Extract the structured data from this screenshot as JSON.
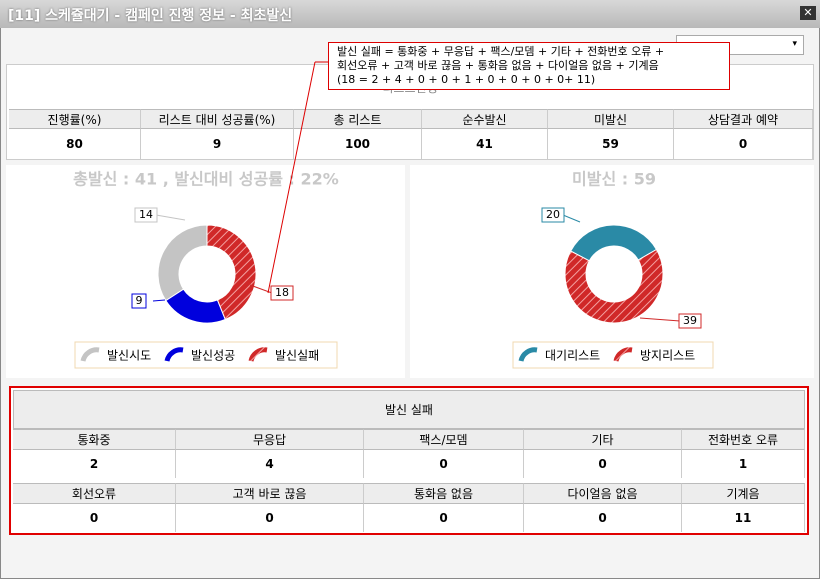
{
  "window": {
    "title": "[11] 스케쥴대기 - 캠페인 진행 정보 - 최초발신"
  },
  "tooltip": {
    "lines": [
      "발신 실패 = 통화중 + 무응답 + 팩스/모뎀 + 기타 + 전화번호 오류 +",
      "회선오류 + 고객 바로 끊음 + 통화음 없음 + 다이얼음 없음 + 기계음",
      "(18 = 2 + 4 + 0 + 0 + 1 + 0 + 0 + 0 + 0+ 11)"
    ]
  },
  "summary": {
    "title": "리스트진행",
    "headers": [
      "진행률(%)",
      "리스트 대비 성공률(%)",
      "총 리스트",
      "순수발신",
      "미발신",
      "상담결과 예약"
    ],
    "values": [
      80,
      9,
      100,
      41,
      59,
      0
    ]
  },
  "charts": [
    {
      "type": "donut",
      "title": "총발신 : 41 , 발신대비 성공률 : 22%",
      "series": [
        {
          "name": "발신시도",
          "color": "#c4c4c4",
          "value": 14
        },
        {
          "name": "발신성공",
          "color": "#0000dd",
          "value": 9
        },
        {
          "name": "발신실패",
          "color": "#d02828",
          "value": 18,
          "hatched": true
        }
      ]
    },
    {
      "type": "donut",
      "title": "미발신 : 59",
      "series": [
        {
          "name": "대기리스트",
          "color": "#2a8aa6",
          "value": 20
        },
        {
          "name": "방지리스트",
          "color": "#d02828",
          "value": 39,
          "hatched": true
        }
      ]
    }
  ],
  "failure": {
    "title": "발신 실패",
    "rows": [
      {
        "headers": [
          "통화중",
          "무응답",
          "팩스/모뎀",
          "기타",
          "전화번호 오류"
        ],
        "values": [
          2,
          4,
          0,
          0,
          1
        ]
      },
      {
        "headers": [
          "회선오류",
          "고객 바로 끊음",
          "통화음 없음",
          "다이얼음 없음",
          "기계음"
        ],
        "values": [
          0,
          0,
          0,
          0,
          11
        ]
      }
    ]
  }
}
